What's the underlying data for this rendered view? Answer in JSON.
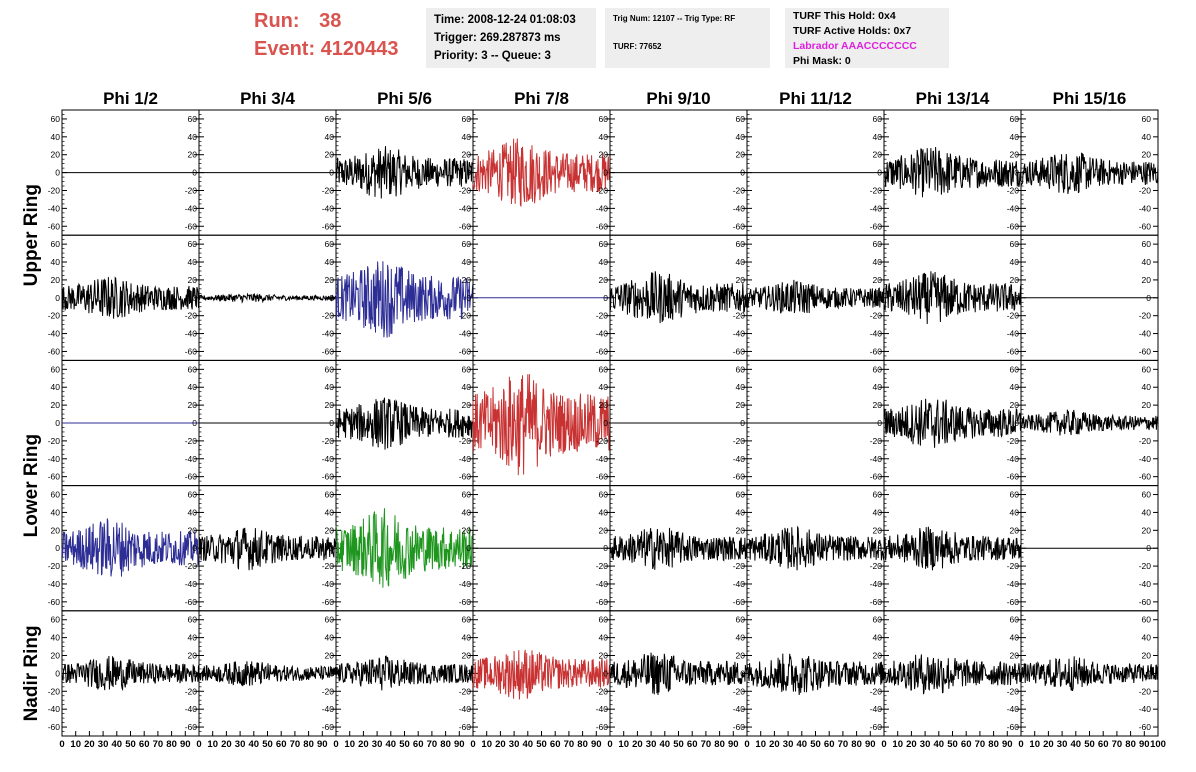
{
  "header": {
    "run_label": "Run:",
    "run_value": "38",
    "event_label": "Event:",
    "event_value": "4120443",
    "time": "Time: 2008-12-24 01:08:03",
    "trigger": "Trigger: 269.287873 ms",
    "priority": "Priority: 3 -- Queue: 3",
    "trig_num": "Trig Num: 12107 -- Trig Type: RF",
    "turf": "TURF: 77652",
    "turf_this_hold": "TURF This Hold: 0x4",
    "turf_active_holds": "TURF Active Holds: 0x7",
    "labrador": "Labrador AAACCCCCCC",
    "phi_mask": "Phi Mask: 0"
  },
  "colors": {
    "run_text": "#d9534f",
    "labrador_text": "#e020e0",
    "trace_black": "#000000",
    "trace_red": "#c83232",
    "trace_blue": "#2d2d96",
    "trace_green": "#1e961e"
  },
  "columns": [
    "Phi 1/2",
    "Phi 3/4",
    "Phi 5/6",
    "Phi 7/8",
    "Phi 9/10",
    "Phi 11/12",
    "Phi 13/14",
    "Phi 15/16"
  ],
  "ring_labels": [
    "Upper Ring",
    "Lower Ring",
    "Nadir Ring"
  ],
  "y_ticks": [
    "60",
    "40",
    "20",
    "0",
    "-20",
    "-40",
    "-60"
  ],
  "x_ticks": [
    "0",
    "10",
    "20",
    "30",
    "40",
    "50",
    "60",
    "70",
    "80",
    "90",
    "100"
  ],
  "chart_data": {
    "type": "line",
    "title": "",
    "xlabel": "",
    "ylabel": "",
    "xlim": [
      0,
      100
    ],
    "ylim": [
      -70,
      70
    ],
    "grid": false,
    "rows": 5,
    "cols": 8,
    "note_panels": "panels listed row-major; each has trace color and approximate peak amplitude (flat = 0)",
    "panels": [
      {
        "row": 1,
        "col": "Phi 1/2",
        "color": "black",
        "amplitude": 0
      },
      {
        "row": 1,
        "col": "Phi 3/4",
        "color": "black",
        "amplitude": 0
      },
      {
        "row": 1,
        "col": "Phi 5/6",
        "color": "black",
        "amplitude": 30
      },
      {
        "row": 1,
        "col": "Phi 7/8",
        "color": "red",
        "amplitude": 40
      },
      {
        "row": 1,
        "col": "Phi 9/10",
        "color": "black",
        "amplitude": 0
      },
      {
        "row": 1,
        "col": "Phi 11/12",
        "color": "black",
        "amplitude": 0
      },
      {
        "row": 1,
        "col": "Phi 13/14",
        "color": "black",
        "amplitude": 30
      },
      {
        "row": 1,
        "col": "Phi 15/16",
        "color": "black",
        "amplitude": 25
      },
      {
        "row": 2,
        "col": "Phi 1/2",
        "color": "black",
        "amplitude": 25
      },
      {
        "row": 2,
        "col": "Phi 3/4",
        "color": "black",
        "amplitude": 5
      },
      {
        "row": 2,
        "col": "Phi 5/6",
        "color": "blue",
        "amplitude": 45
      },
      {
        "row": 2,
        "col": "Phi 7/8",
        "color": "blue",
        "amplitude": 0
      },
      {
        "row": 2,
        "col": "Phi 9/10",
        "color": "black",
        "amplitude": 30
      },
      {
        "row": 2,
        "col": "Phi 11/12",
        "color": "black",
        "amplitude": 20
      },
      {
        "row": 2,
        "col": "Phi 13/14",
        "color": "black",
        "amplitude": 30
      },
      {
        "row": 2,
        "col": "Phi 15/16",
        "color": "black",
        "amplitude": 0
      },
      {
        "row": 3,
        "col": "Phi 1/2",
        "color": "blue",
        "amplitude": 0
      },
      {
        "row": 3,
        "col": "Phi 3/4",
        "color": "black",
        "amplitude": 0
      },
      {
        "row": 3,
        "col": "Phi 5/6",
        "color": "black",
        "amplitude": 30
      },
      {
        "row": 3,
        "col": "Phi 7/8",
        "color": "red",
        "amplitude": 60
      },
      {
        "row": 3,
        "col": "Phi 9/10",
        "color": "black",
        "amplitude": 0
      },
      {
        "row": 3,
        "col": "Phi 11/12",
        "color": "black",
        "amplitude": 0
      },
      {
        "row": 3,
        "col": "Phi 13/14",
        "color": "black",
        "amplitude": 30
      },
      {
        "row": 3,
        "col": "Phi 15/16",
        "color": "black",
        "amplitude": 15
      },
      {
        "row": 4,
        "col": "Phi 1/2",
        "color": "blue",
        "amplitude": 35
      },
      {
        "row": 4,
        "col": "Phi 3/4",
        "color": "black",
        "amplitude": 25
      },
      {
        "row": 4,
        "col": "Phi 5/6",
        "color": "green",
        "amplitude": 45
      },
      {
        "row": 4,
        "col": "Phi 7/8",
        "color": "black",
        "amplitude": 0
      },
      {
        "row": 4,
        "col": "Phi 9/10",
        "color": "black",
        "amplitude": 25
      },
      {
        "row": 4,
        "col": "Phi 11/12",
        "color": "black",
        "amplitude": 25
      },
      {
        "row": 4,
        "col": "Phi 13/14",
        "color": "black",
        "amplitude": 25
      },
      {
        "row": 4,
        "col": "Phi 15/16",
        "color": "black",
        "amplitude": 0
      },
      {
        "row": 5,
        "col": "Phi 1/2",
        "color": "black",
        "amplitude": 20
      },
      {
        "row": 5,
        "col": "Phi 3/4",
        "color": "black",
        "amplitude": 15
      },
      {
        "row": 5,
        "col": "Phi 5/6",
        "color": "black",
        "amplitude": 20
      },
      {
        "row": 5,
        "col": "Phi 7/8",
        "color": "red",
        "amplitude": 30
      },
      {
        "row": 5,
        "col": "Phi 9/10",
        "color": "black",
        "amplitude": 25
      },
      {
        "row": 5,
        "col": "Phi 11/12",
        "color": "black",
        "amplitude": 25
      },
      {
        "row": 5,
        "col": "Phi 13/14",
        "color": "black",
        "amplitude": 25
      },
      {
        "row": 5,
        "col": "Phi 15/16",
        "color": "black",
        "amplitude": 20
      }
    ]
  }
}
